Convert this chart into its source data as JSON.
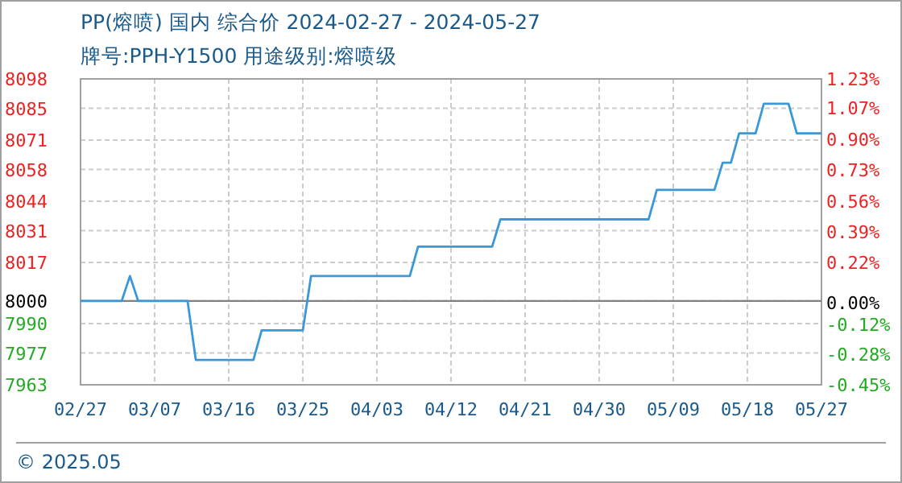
{
  "chart_data": {
    "type": "line",
    "title": "PP(熔喷) 国内 综合价 2024-02-27 - 2024-05-27",
    "subtitle": "牌号:PPH-Y1500 用途级别:熔喷级",
    "annotations": [
      "© 2025.05"
    ],
    "x": [
      "2024-02-27",
      "2024-03-03",
      "2024-03-04",
      "2024-03-05",
      "2024-03-11",
      "2024-03-12",
      "2024-03-19",
      "2024-03-20",
      "2024-03-25",
      "2024-03-26",
      "2024-04-07",
      "2024-04-08",
      "2024-04-17",
      "2024-04-18",
      "2024-05-06",
      "2024-05-07",
      "2024-05-14",
      "2024-05-15",
      "2024-05-16",
      "2024-05-17",
      "2024-05-19",
      "2024-05-20",
      "2024-05-23",
      "2024-05-24",
      "2024-05-27"
    ],
    "series": [
      {
        "color": "#3a98d8",
        "values": [
          8000,
          8000,
          8011,
          8000,
          8000,
          7974,
          7974,
          7987,
          7987,
          8011,
          8011,
          8024,
          8024,
          8036,
          8036,
          8049,
          8049,
          8061,
          8061,
          8074,
          8074,
          8087,
          8087,
          8074,
          8074
        ]
      }
    ],
    "xlim": [
      "2024-02-27",
      "2024-05-27"
    ],
    "xticks": [
      {
        "value": "2024-02-27",
        "label": "02/27"
      },
      {
        "value": "2024-03-07",
        "label": "03/07"
      },
      {
        "value": "2024-03-16",
        "label": "03/16"
      },
      {
        "value": "2024-03-25",
        "label": "03/25"
      },
      {
        "value": "2024-04-03",
        "label": "04/03"
      },
      {
        "value": "2024-04-12",
        "label": "04/12"
      },
      {
        "value": "2024-04-21",
        "label": "04/21"
      },
      {
        "value": "2024-04-30",
        "label": "04/30"
      },
      {
        "value": "2024-05-09",
        "label": "05/09"
      },
      {
        "value": "2024-05-18",
        "label": "05/18"
      },
      {
        "value": "2024-05-27",
        "label": "05/27"
      }
    ],
    "ylim": [
      7963,
      8098
    ],
    "yticks": [
      8098,
      8085,
      8071,
      8058,
      8044,
      8031,
      8017,
      8000,
      7990,
      7977,
      7963
    ],
    "y2lim": [
      -0.45,
      1.23
    ],
    "y2ticks": [
      {
        "value": 1.23,
        "label": "1.23%"
      },
      {
        "value": 1.07,
        "label": "1.07%"
      },
      {
        "value": 0.9,
        "label": "0.90%"
      },
      {
        "value": 0.73,
        "label": "0.73%"
      },
      {
        "value": 0.56,
        "label": "0.56%"
      },
      {
        "value": 0.39,
        "label": "0.39%"
      },
      {
        "value": 0.22,
        "label": "0.22%"
      },
      {
        "value": 0,
        "label": "0.00%"
      },
      {
        "value": -0.12,
        "label": "-0.12%"
      },
      {
        "value": -0.28,
        "label": "-0.28%"
      },
      {
        "value": -0.45,
        "label": "-0.45%"
      }
    ],
    "ref_lines": [
      {
        "axis": "y",
        "value": 8000,
        "color": "#808080"
      }
    ],
    "grid": true,
    "marker": "none",
    "line_style": "solid"
  }
}
